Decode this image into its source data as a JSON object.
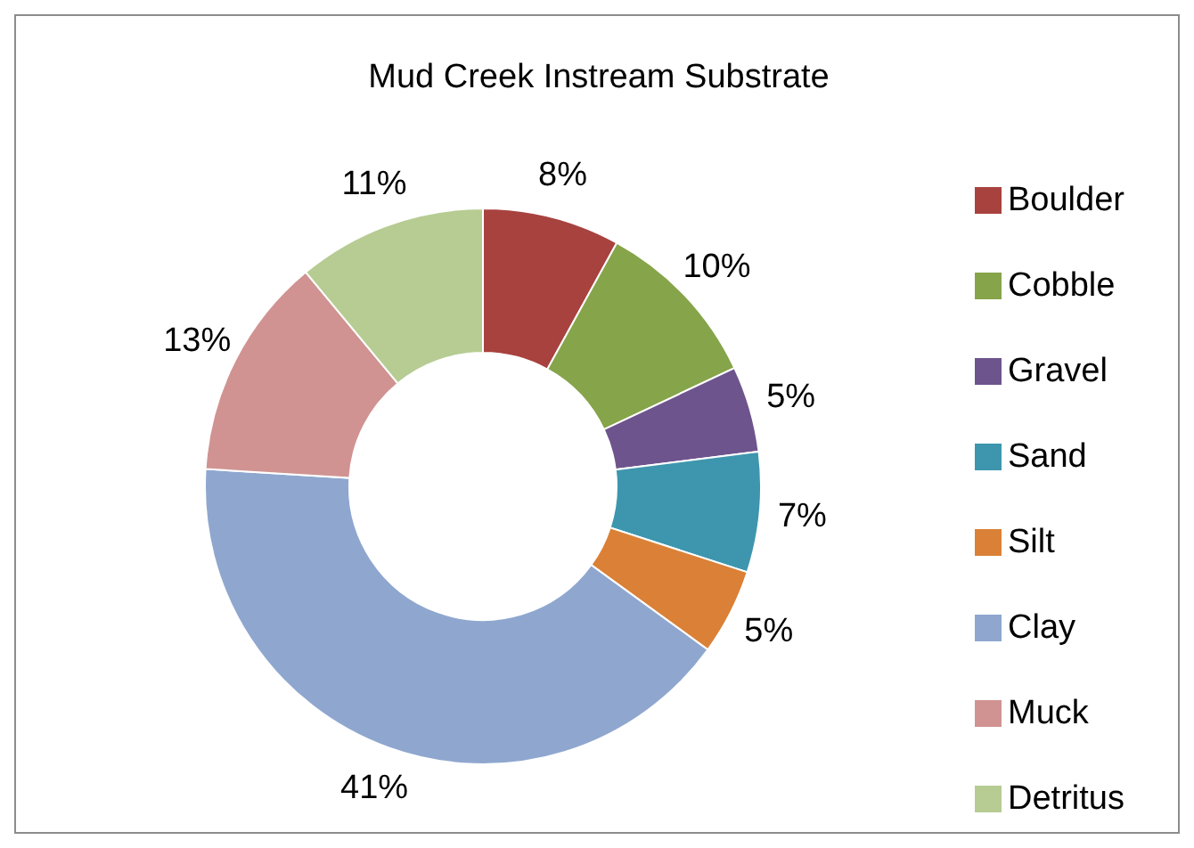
{
  "chart_data": {
    "type": "donut",
    "title": "Mud Creek Instream Substrate",
    "categories": [
      "Boulder",
      "Cobble",
      "Gravel",
      "Sand",
      "Silt",
      "Clay",
      "Muck",
      "Detritus"
    ],
    "values": [
      8,
      10,
      5,
      7,
      5,
      41,
      13,
      11
    ],
    "colors": [
      "#a8423f",
      "#86a44a",
      "#6e548d",
      "#3d96ae",
      "#da8137",
      "#8fa7cf",
      "#d09392",
      "#b6cc93"
    ],
    "value_labels": [
      "8%",
      "10%",
      "5%",
      "7%",
      "5%",
      "41%",
      "13%",
      "11%"
    ],
    "legend": "right"
  }
}
